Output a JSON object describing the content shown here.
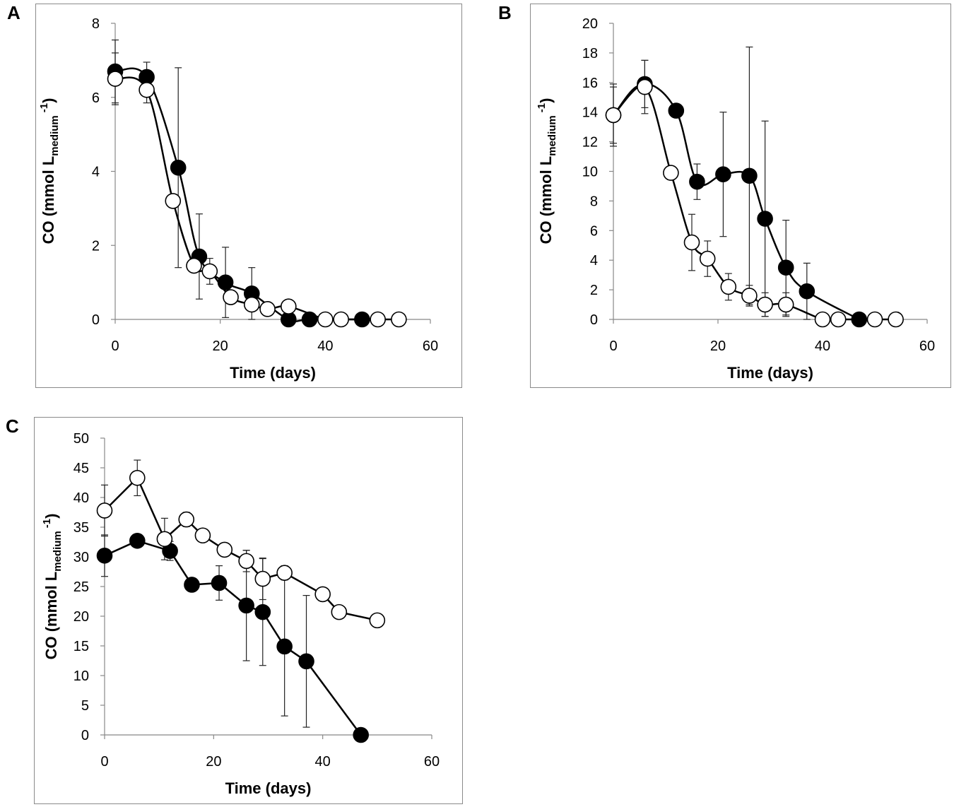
{
  "chart_data": [
    {
      "id": "A",
      "panel_label": "A",
      "type": "line",
      "title": "",
      "xlabel": "Time (days)",
      "ylabel_main": "CO (mmol L",
      "ylabel_sub": "medium",
      "ylabel_sup": "-1",
      "ylabel_close": ")",
      "xlim": [
        0,
        60
      ],
      "ylim": [
        0,
        8
      ],
      "xticks": [
        0,
        20,
        40,
        60
      ],
      "yticks": [
        0,
        2,
        4,
        6,
        8
      ],
      "xtick_labels": [
        "0",
        "20",
        "40",
        "60"
      ],
      "ytick_labels": [
        "0",
        "2",
        "4",
        "6",
        "8"
      ],
      "series": [
        {
          "name": "filled",
          "marker": "filled",
          "x": [
            0,
            6,
            12,
            16,
            21,
            26,
            33,
            37,
            47
          ],
          "y": [
            6.7,
            6.55,
            4.1,
            1.7,
            1.0,
            0.7,
            0.0,
            0.0,
            0.0
          ],
          "err": [
            0.85,
            0.4,
            2.7,
            1.15,
            0.95,
            0.7,
            0,
            0,
            0
          ]
        },
        {
          "name": "open",
          "marker": "open",
          "x": [
            0,
            6,
            11,
            15,
            18,
            22,
            26,
            29,
            33,
            40,
            43,
            50,
            54
          ],
          "y": [
            6.5,
            6.2,
            3.2,
            1.45,
            1.3,
            0.6,
            0.4,
            0.28,
            0.35,
            0.0,
            0.0,
            0.0,
            0.0
          ],
          "err": [
            0.7,
            0.35,
            0,
            0,
            0.35,
            0,
            0,
            0,
            0,
            0,
            0,
            0,
            0
          ]
        }
      ]
    },
    {
      "id": "B",
      "panel_label": "B",
      "type": "line",
      "title": "",
      "xlabel": "Time (days)",
      "ylabel_main": "CO (mmol L",
      "ylabel_sub": "medium",
      "ylabel_sup": "-1",
      "ylabel_close": ")",
      "xlim": [
        0,
        60
      ],
      "ylim": [
        0,
        20
      ],
      "xticks": [
        0,
        20,
        40,
        60
      ],
      "yticks": [
        0,
        2,
        4,
        6,
        8,
        10,
        12,
        14,
        16,
        18,
        20
      ],
      "xtick_labels": [
        "0",
        "20",
        "40",
        "60"
      ],
      "ytick_labels": [
        "0",
        "2",
        "4",
        "6",
        "8",
        "10",
        "12",
        "14",
        "16",
        "18",
        "20"
      ],
      "series": [
        {
          "name": "filled",
          "marker": "filled",
          "x": [
            0,
            6,
            12,
            16,
            21,
            26,
            29,
            33,
            37,
            47
          ],
          "y": [
            13.8,
            15.9,
            14.1,
            9.3,
            9.8,
            9.7,
            6.8,
            3.5,
            1.9,
            0.0
          ],
          "err": [
            1.9,
            1.6,
            0,
            1.2,
            4.2,
            8.7,
            6.6,
            3.2,
            1.9,
            0
          ]
        },
        {
          "name": "open",
          "marker": "open",
          "x": [
            0,
            6,
            11,
            15,
            18,
            22,
            26,
            29,
            33,
            40,
            43,
            50,
            54
          ],
          "y": [
            13.8,
            15.7,
            9.9,
            5.2,
            4.1,
            2.2,
            1.6,
            1.0,
            1.0,
            0.0,
            0.0,
            0.0,
            0.0
          ],
          "err": [
            2.1,
            1.8,
            0,
            1.9,
            1.2,
            0.9,
            0.7,
            0.8,
            0.8,
            0,
            0,
            0,
            0
          ]
        }
      ]
    },
    {
      "id": "C",
      "panel_label": "C",
      "type": "line",
      "title": "",
      "xlabel": "Time (days)",
      "ylabel_main": "CO (mmol L",
      "ylabel_sub": "medium",
      "ylabel_sup": "-1",
      "ylabel_close": ")",
      "xlim": [
        0,
        60
      ],
      "ylim": [
        0,
        50
      ],
      "xticks": [
        0,
        20,
        40,
        60
      ],
      "yticks": [
        0,
        5,
        10,
        15,
        20,
        25,
        30,
        35,
        40,
        45,
        50
      ],
      "xtick_labels": [
        "0",
        "20",
        "40",
        "60"
      ],
      "ytick_labels": [
        "0",
        "5",
        "10",
        "15",
        "20",
        "25",
        "30",
        "35",
        "40",
        "45",
        "50"
      ],
      "series": [
        {
          "name": "filled",
          "marker": "filled",
          "x": [
            0,
            6,
            12,
            16,
            21,
            26,
            29,
            33,
            37,
            47
          ],
          "y": [
            30.2,
            32.7,
            31.0,
            25.3,
            25.6,
            21.8,
            20.7,
            14.9,
            12.4,
            0.0
          ],
          "err": [
            3.5,
            0,
            1.6,
            0,
            2.9,
            9.3,
            9.0,
            11.7,
            11.1,
            0
          ]
        },
        {
          "name": "open",
          "marker": "open",
          "x": [
            0,
            6,
            11,
            15,
            18,
            22,
            26,
            29,
            33,
            40,
            43,
            50
          ],
          "y": [
            37.8,
            43.3,
            33.0,
            36.3,
            33.6,
            31.2,
            29.3,
            26.3,
            27.3,
            23.7,
            20.7,
            19.3
          ],
          "err": [
            4.3,
            3.0,
            3.5,
            1.2,
            0,
            0,
            1.8,
            3.5,
            1.2,
            0,
            0,
            0
          ]
        }
      ]
    }
  ]
}
